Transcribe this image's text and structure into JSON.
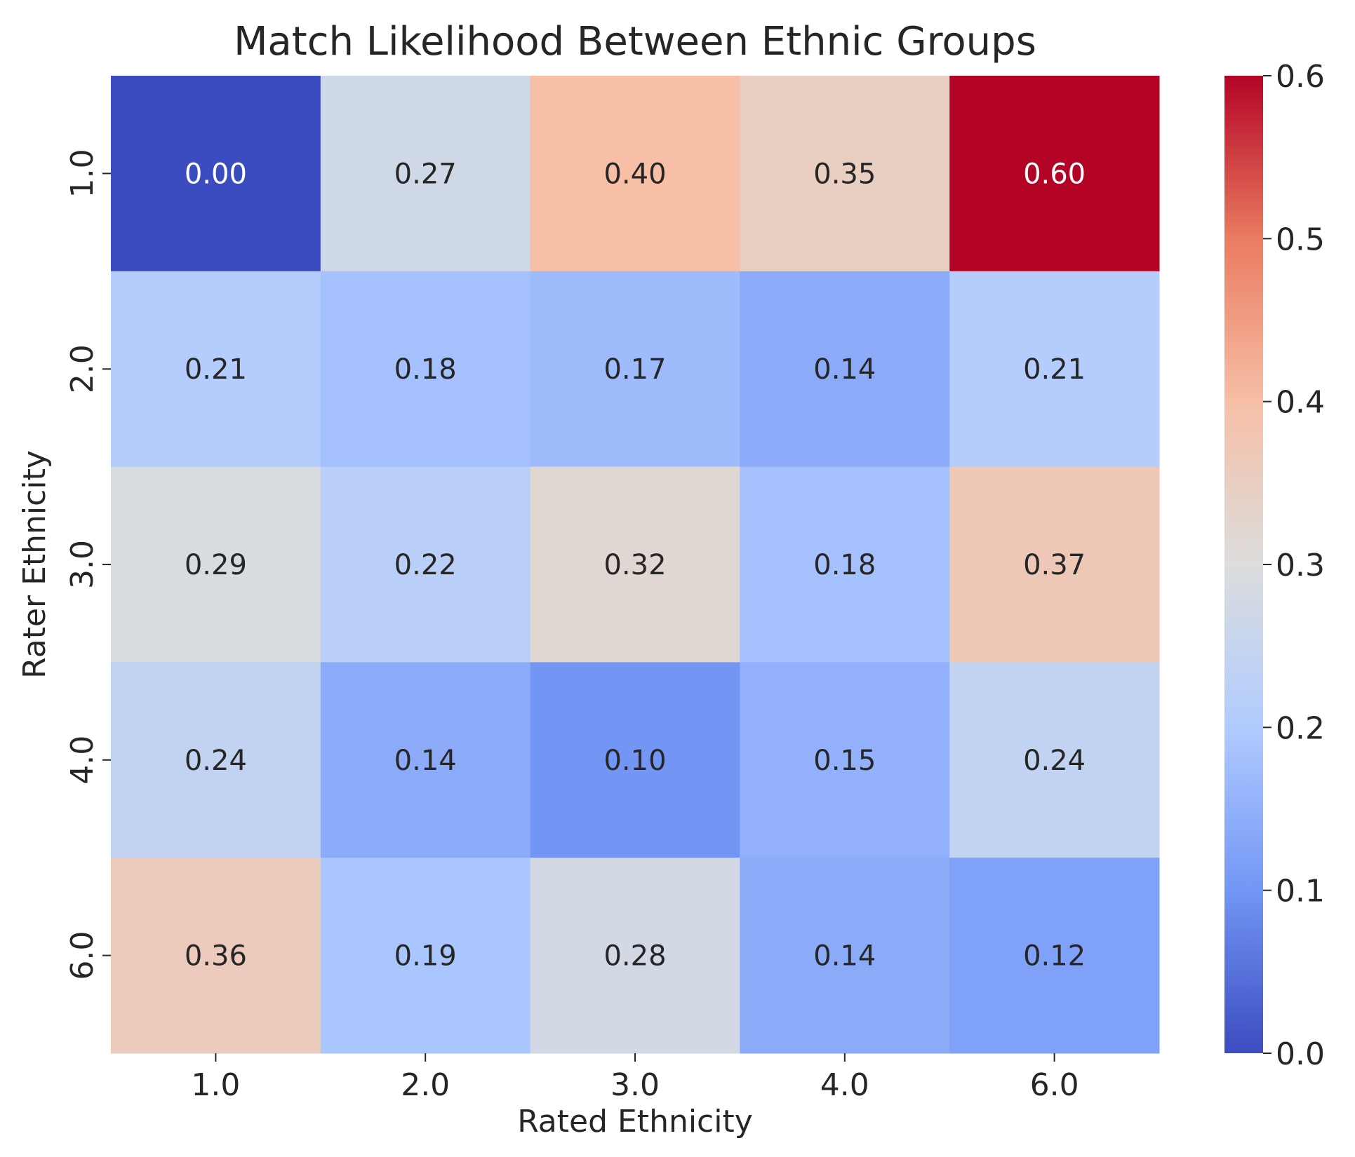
{
  "chart_data": {
    "type": "heatmap",
    "title": "Match Likelihood Between Ethnic Groups",
    "xlabel": "Rated Ethnicity",
    "ylabel": "Rater Ethnicity",
    "x_categories": [
      "1.0",
      "2.0",
      "3.0",
      "4.0",
      "6.0"
    ],
    "y_categories": [
      "1.0",
      "2.0",
      "3.0",
      "4.0",
      "6.0"
    ],
    "values": [
      [
        0.0,
        0.27,
        0.4,
        0.35,
        0.6
      ],
      [
        0.21,
        0.18,
        0.17,
        0.14,
        0.21
      ],
      [
        0.29,
        0.22,
        0.32,
        0.18,
        0.37
      ],
      [
        0.24,
        0.14,
        0.1,
        0.15,
        0.24
      ],
      [
        0.36,
        0.19,
        0.28,
        0.14,
        0.12
      ]
    ],
    "value_format_decimals": 2,
    "colormap": "coolwarm",
    "colormap_stops": [
      "#3b4cc0",
      "#7396f5",
      "#b0cbff",
      "#dcdddd",
      "#f6bfa6",
      "#ea7b60",
      "#b40426"
    ],
    "vmin": 0.0,
    "vmax": 0.6,
    "colorbar_ticks": [
      "0.0",
      "0.1",
      "0.2",
      "0.3",
      "0.4",
      "0.5",
      "0.6"
    ],
    "grid": false,
    "colorbar_position": "right"
  }
}
